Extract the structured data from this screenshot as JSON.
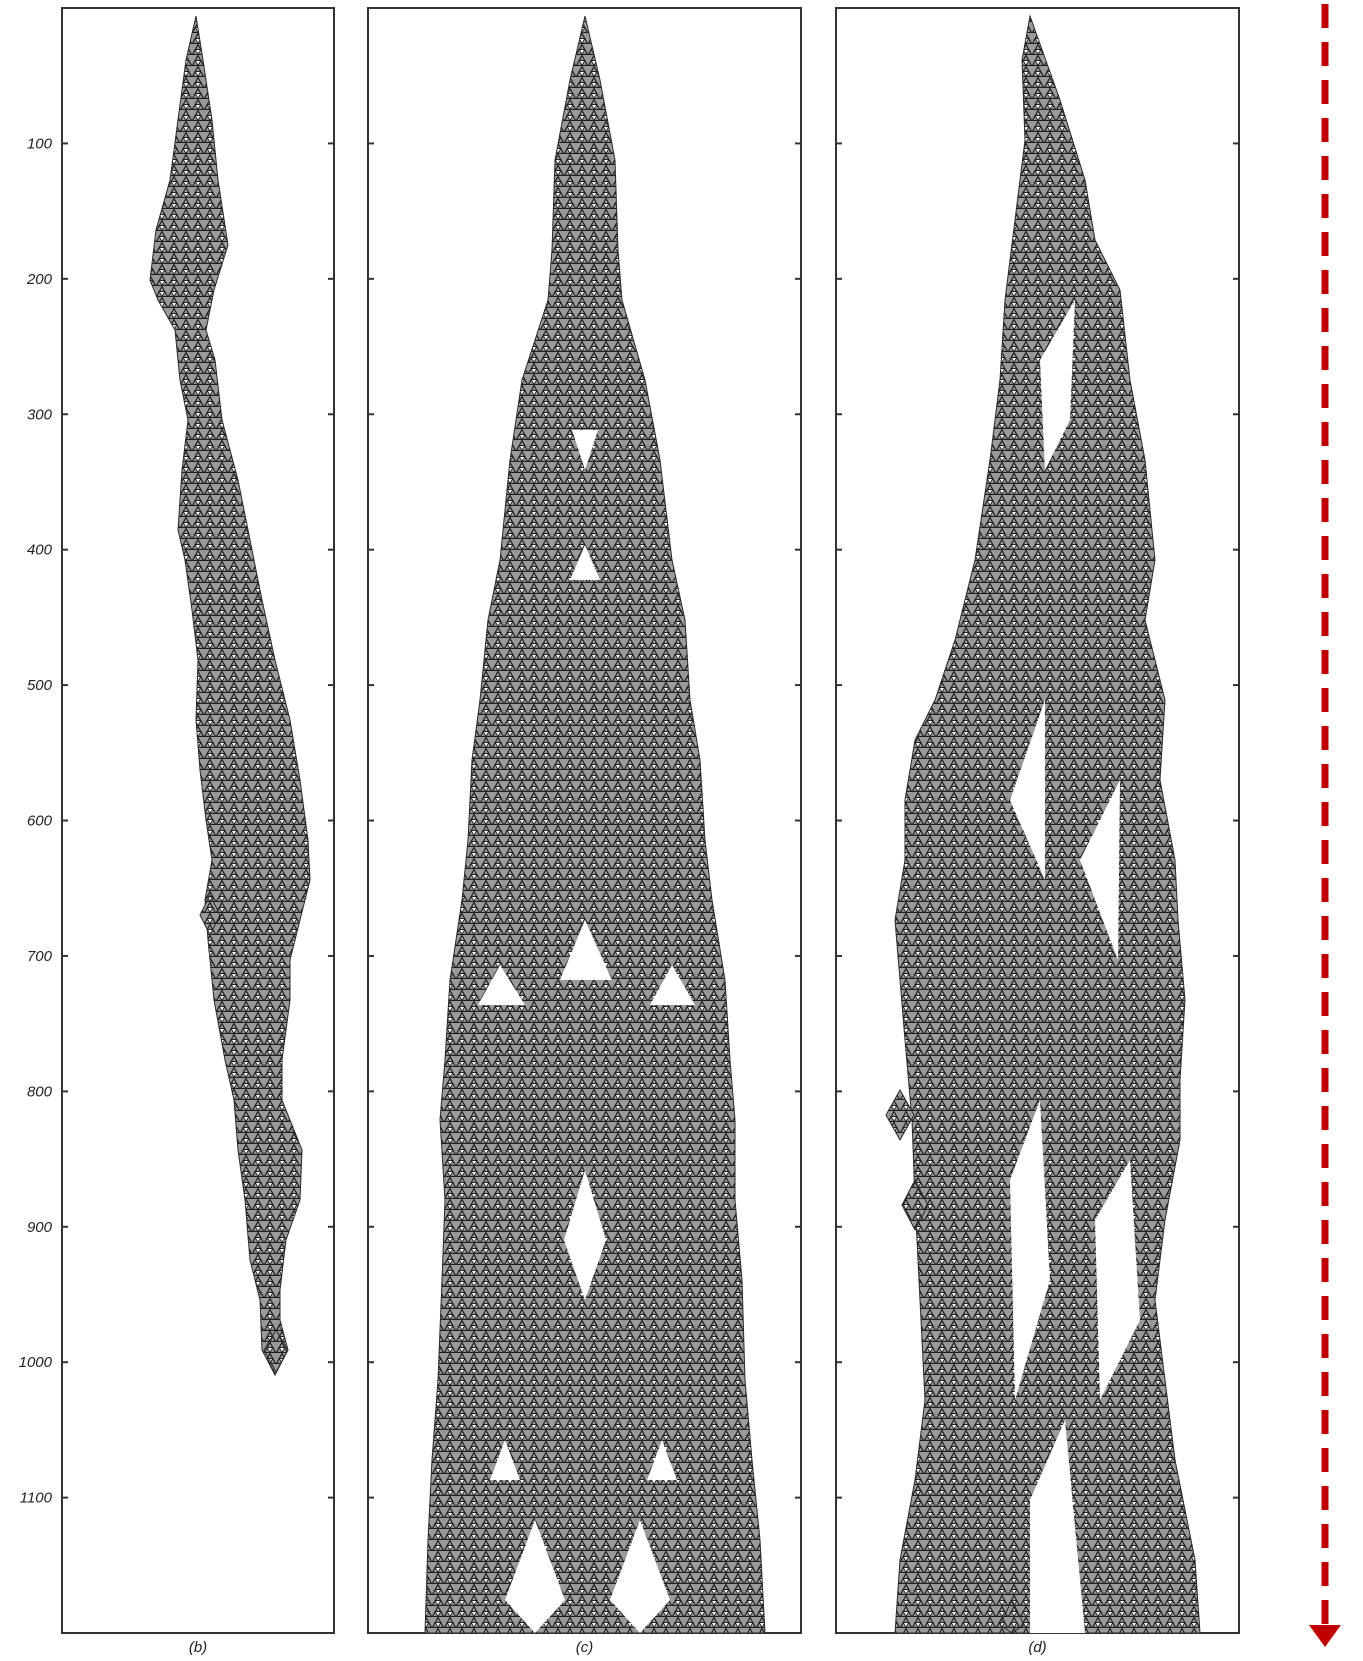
{
  "axis": {
    "ticks": [
      {
        "value": 100,
        "label": "100"
      },
      {
        "value": 200,
        "label": "200"
      },
      {
        "value": 300,
        "label": "300"
      },
      {
        "value": 400,
        "label": "400"
      },
      {
        "value": 500,
        "label": "500"
      },
      {
        "value": 600,
        "label": "600"
      },
      {
        "value": 700,
        "label": "700"
      },
      {
        "value": 800,
        "label": "800"
      },
      {
        "value": 900,
        "label": "900"
      },
      {
        "value": 1000,
        "label": "1000"
      },
      {
        "value": 1100,
        "label": "1100"
      }
    ],
    "range": [
      0,
      1200
    ]
  },
  "panels": [
    {
      "id": "b",
      "label": "(b)",
      "extent": 1000
    },
    {
      "id": "c",
      "label": "(c)",
      "extent": 1200
    },
    {
      "id": "d",
      "label": "(d)",
      "extent": 1200
    }
  ],
  "colors": {
    "frame": "#333333",
    "pattern": "#2a2a2a",
    "pattern_fill": "#9a9a9a",
    "arrow": "#c00000"
  },
  "arrow": {
    "icon": "dashed-arrow-down-icon"
  }
}
